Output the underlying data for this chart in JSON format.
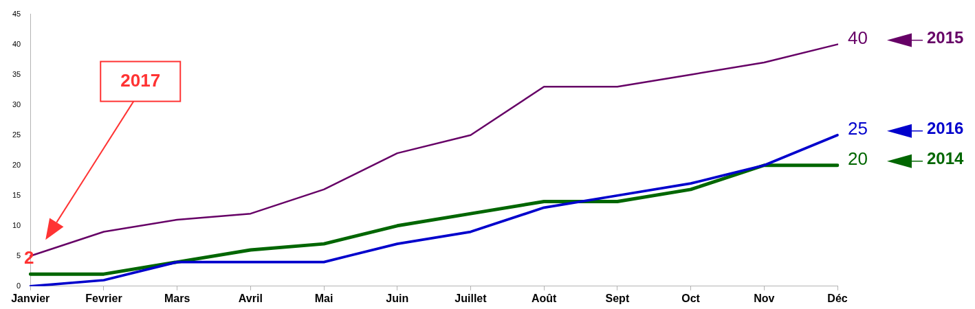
{
  "chart_data": {
    "type": "line",
    "categories": [
      "Janvier",
      "Fevrier",
      "Mars",
      "Avril",
      "Mai",
      "Juin",
      "Juillet",
      "Août",
      "Sept",
      "Oct",
      "Nov",
      "Déc"
    ],
    "ylim": [
      0,
      45
    ],
    "yticks": [
      0,
      5,
      10,
      15,
      20,
      25,
      30,
      35,
      40,
      45
    ],
    "grid": false,
    "legend": "right",
    "marker": "none",
    "line_style": "solid",
    "series": [
      {
        "name": "2015",
        "color": "#660066",
        "values": [
          5,
          9,
          11,
          12,
          16,
          22,
          25,
          33,
          33,
          35,
          37,
          40
        ],
        "value_labels": [
          null,
          null,
          null,
          null,
          null,
          null,
          null,
          null,
          null,
          null,
          null,
          "40"
        ]
      },
      {
        "name": "2016",
        "color": "#0000cc",
        "values": [
          0,
          1,
          4,
          4,
          4,
          7,
          9,
          13,
          15,
          17,
          20,
          25
        ],
        "value_labels": [
          null,
          null,
          null,
          null,
          null,
          null,
          null,
          null,
          null,
          null,
          null,
          "25"
        ]
      },
      {
        "name": "2014",
        "color": "#006600",
        "values": [
          2,
          2,
          4,
          6,
          7,
          10,
          12,
          14,
          14,
          16,
          20,
          20
        ],
        "value_labels": [
          null,
          null,
          null,
          null,
          null,
          null,
          null,
          null,
          null,
          null,
          null,
          "20"
        ]
      }
    ],
    "annotations": [
      "2017",
      {
        "text": "2",
        "x": "Janvier",
        "y": 2
      }
    ]
  }
}
